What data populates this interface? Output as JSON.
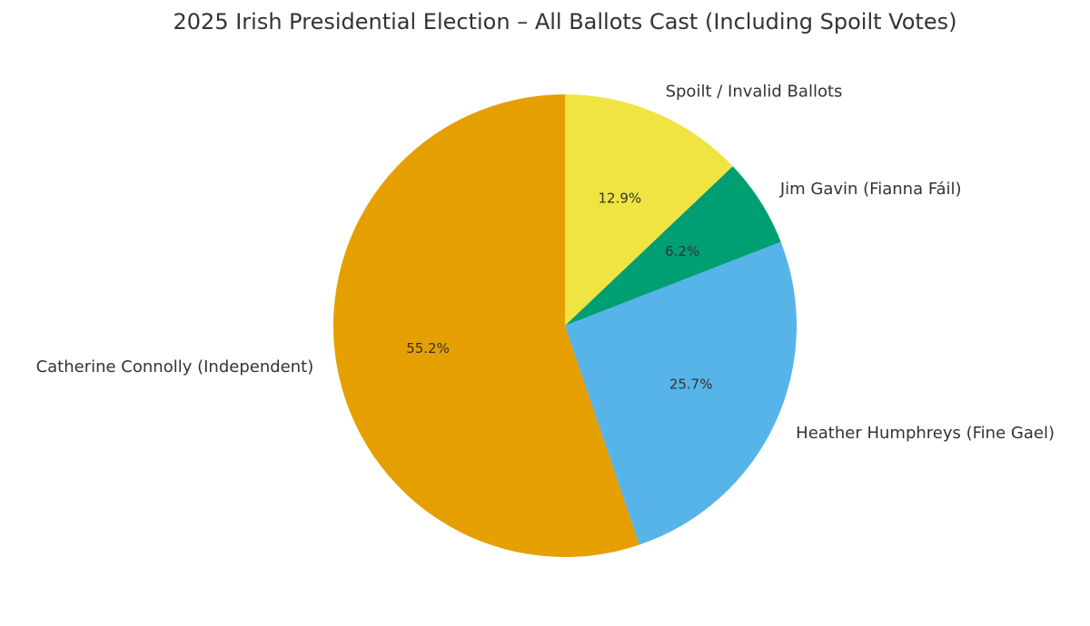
{
  "chart_data": {
    "type": "pie",
    "title": "2025 Irish Presidential Election – All Ballots Cast (Including Spoilt Votes)",
    "start_angle_deg": 90,
    "direction": "clockwise",
    "slices": [
      {
        "label": "Spoilt / Invalid Ballots",
        "value": 12.9,
        "pct_label": "12.9%",
        "color": "#F0E442"
      },
      {
        "label": "Jim Gavin (Fianna Fáil)",
        "value": 6.2,
        "pct_label": "6.2%",
        "color": "#009E73"
      },
      {
        "label": "Heather Humphreys (Fine Gael)",
        "value": 25.7,
        "pct_label": "25.7%",
        "color": "#56B4E9"
      },
      {
        "label": "Catherine Connolly (Independent)",
        "value": 55.2,
        "pct_label": "55.2%",
        "color": "#E69F00"
      }
    ]
  }
}
